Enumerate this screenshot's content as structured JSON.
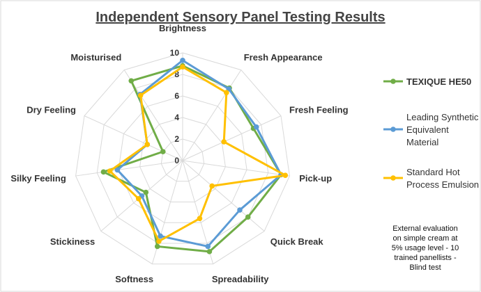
{
  "chart_data": {
    "type": "radar",
    "title": "Independent Sensory Panel Testing Results",
    "categories": [
      "Brightness",
      "Fresh Appearance",
      "Fresh Feeling",
      "Pick-up",
      "Quick Break",
      "Spreadability",
      "Softness",
      "Stickiness",
      "Silky Feeling",
      "Dry Feeling",
      "Moisturised"
    ],
    "ticks": [
      "0",
      "2",
      "4",
      "6",
      "8",
      "10"
    ],
    "rlim": [
      0,
      10
    ],
    "grid": true,
    "legend_position": "right",
    "series": [
      {
        "name": "TEXIQUE HE50",
        "color": "#70ad47",
        "values": [
          8.8,
          8.0,
          7.2,
          9.2,
          8.0,
          8.8,
          8.3,
          4.5,
          7.4,
          2.0,
          8.8
        ]
      },
      {
        "name": "Leading Synthetic Equivalent Material",
        "color": "#5b9bd5",
        "values": [
          9.3,
          7.9,
          7.5,
          9.2,
          7.0,
          8.3,
          7.3,
          5.0,
          6.1,
          3.6,
          7.3
        ]
      },
      {
        "name": "Standard Hot Process Emulsion",
        "color": "#ffc000",
        "values": [
          8.7,
          7.5,
          4.2,
          9.6,
          3.6,
          5.6,
          7.8,
          5.4,
          6.8,
          3.6,
          7.2
        ]
      }
    ],
    "annotation": [
      "External evaluation",
      "on simple cream at",
      "5% usage level - 10",
      "trained panellists -",
      "Blind test"
    ]
  }
}
